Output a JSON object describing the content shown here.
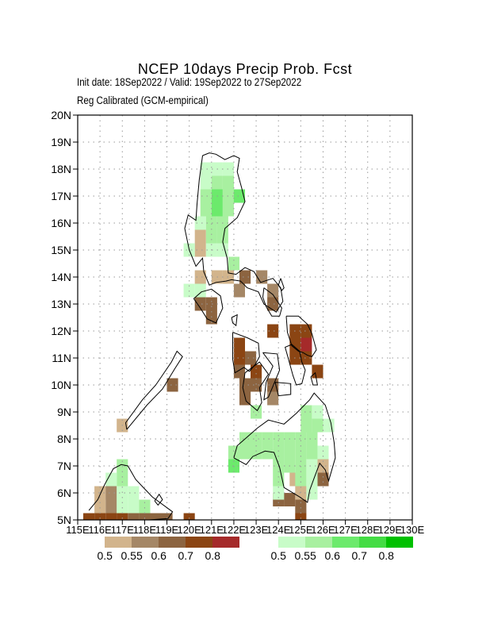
{
  "title": "NCEP 10days Precip Prob. Fcst",
  "subtitle_line1": "Init date: 18Sep2022 / Valid: 19Sep2022 to 27Sep2022",
  "subtitle_line2": "Reg Calibrated (GCM-empirical)",
  "map": {
    "lon_range": [
      115,
      130
    ],
    "lat_range": [
      5,
      20
    ],
    "grid_step_deg": 1,
    "cell_deg": 0.5,
    "grid_style": "dotted",
    "x_tick_labels": [
      "115E",
      "116E",
      "117E",
      "118E",
      "119E",
      "120E",
      "121E",
      "122E",
      "123E",
      "124E",
      "125E",
      "126E",
      "127E",
      "128E",
      "129E",
      "130E"
    ],
    "y_tick_labels": [
      "5N",
      "6N",
      "7N",
      "8N",
      "9N",
      "10N",
      "11N",
      "12N",
      "13N",
      "14N",
      "15N",
      "16N",
      "17N",
      "18N",
      "19N",
      "20N"
    ],
    "coastline_color": "#000000"
  },
  "legend": {
    "dry": {
      "colors": [
        "#d2b48c",
        "#a58766",
        "#8c6440",
        "#8b4513",
        "#a52a2a"
      ],
      "labels": [
        "0.5",
        "0.55",
        "0.6",
        "0.7",
        "0.8"
      ]
    },
    "wet": {
      "colors": [
        "#c8fcc8",
        "#a8f0a0",
        "#6cea6c",
        "#44dc44",
        "#00c000"
      ],
      "labels": [
        "0.5",
        "0.55",
        "0.6",
        "0.7",
        "0.8"
      ]
    }
  },
  "dry_cells": [
    [
      120.5,
      15.5,
      1
    ],
    [
      120.5,
      15.0,
      1
    ],
    [
      121.25,
      14.0,
      1
    ],
    [
      121.75,
      14.0,
      1
    ],
    [
      120.5,
      14.0,
      1
    ],
    [
      120.5,
      13.0,
      3
    ],
    [
      121.0,
      13.0,
      3
    ],
    [
      121.0,
      12.5,
      3
    ],
    [
      122.25,
      13.5,
      2
    ],
    [
      122.5,
      14.0,
      3
    ],
    [
      123.25,
      14.0,
      2
    ],
    [
      123.75,
      13.5,
      2
    ],
    [
      123.75,
      13.0,
      3
    ],
    [
      123.75,
      12.0,
      4
    ],
    [
      124.75,
      12.0,
      4
    ],
    [
      125.25,
      12.0,
      4
    ],
    [
      124.75,
      11.5,
      4
    ],
    [
      125.25,
      11.5,
      5
    ],
    [
      124.75,
      11.0,
      4
    ],
    [
      125.25,
      11.0,
      4
    ],
    [
      125.75,
      10.5,
      4
    ],
    [
      122.25,
      11.5,
      4
    ],
    [
      122.25,
      11.0,
      4
    ],
    [
      122.75,
      11.0,
      3
    ],
    [
      122.25,
      10.5,
      3
    ],
    [
      123.0,
      10.5,
      4
    ],
    [
      122.5,
      10.0,
      3
    ],
    [
      123.0,
      10.0,
      3
    ],
    [
      122.5,
      9.5,
      3
    ],
    [
      123.75,
      10.0,
      3
    ],
    [
      123.75,
      9.5,
      2
    ],
    [
      124.75,
      6.5,
      1
    ],
    [
      125.0,
      6.0,
      1
    ],
    [
      126.0,
      6.5,
      3
    ],
    [
      126.0,
      7.0,
      1
    ],
    [
      124.0,
      5.75,
      3
    ],
    [
      124.5,
      5.75,
      3
    ],
    [
      125.0,
      5.5,
      3
    ],
    [
      125.0,
      5.0,
      4
    ],
    [
      119.25,
      10.0,
      3
    ],
    [
      117.0,
      8.5,
      1
    ],
    [
      116.0,
      6.0,
      1
    ],
    [
      116.5,
      6.0,
      2
    ],
    [
      116.5,
      5.5,
      2
    ],
    [
      116.0,
      5.5,
      1
    ],
    [
      115.5,
      5.0,
      4
    ],
    [
      116.0,
      5.0,
      4
    ],
    [
      116.5,
      5.0,
      4
    ],
    [
      117.0,
      5.0,
      4
    ],
    [
      117.5,
      5.0,
      3
    ],
    [
      118.0,
      5.0,
      3
    ],
    [
      118.5,
      5.0,
      3
    ],
    [
      119.0,
      5.0,
      3
    ],
    [
      120.0,
      5.0,
      4
    ]
  ],
  "wet_cells": [
    [
      120.75,
      18.0,
      1
    ],
    [
      121.25,
      18.0,
      1
    ],
    [
      121.75,
      18.0,
      1
    ],
    [
      120.75,
      17.5,
      1
    ],
    [
      121.25,
      17.5,
      2
    ],
    [
      121.75,
      17.5,
      2
    ],
    [
      120.75,
      17.0,
      2
    ],
    [
      121.25,
      17.0,
      3
    ],
    [
      121.75,
      17.0,
      2
    ],
    [
      122.25,
      17.0,
      3
    ],
    [
      120.75,
      16.5,
      2
    ],
    [
      121.25,
      16.5,
      3
    ],
    [
      121.75,
      16.5,
      2
    ],
    [
      120.5,
      16.0,
      1
    ],
    [
      121.0,
      16.0,
      2
    ],
    [
      121.5,
      16.0,
      2
    ],
    [
      121.0,
      15.5,
      2
    ],
    [
      121.5,
      15.5,
      2
    ],
    [
      120.0,
      15.0,
      1
    ],
    [
      121.0,
      15.0,
      1
    ],
    [
      121.5,
      15.0,
      1
    ],
    [
      122.0,
      14.5,
      2
    ],
    [
      120.0,
      13.5,
      1
    ],
    [
      120.5,
      13.5,
      1
    ],
    [
      123.0,
      9.0,
      2
    ],
    [
      122.5,
      8.0,
      2
    ],
    [
      123.0,
      8.0,
      2
    ],
    [
      123.5,
      8.0,
      2
    ],
    [
      124.0,
      8.0,
      2
    ],
    [
      124.5,
      8.0,
      2
    ],
    [
      125.0,
      8.0,
      2
    ],
    [
      125.5,
      8.0,
      2
    ],
    [
      122.0,
      7.5,
      2
    ],
    [
      122.5,
      7.5,
      2
    ],
    [
      123.0,
      7.5,
      2
    ],
    [
      123.5,
      7.5,
      2
    ],
    [
      124.0,
      7.5,
      2
    ],
    [
      124.5,
      7.5,
      2
    ],
    [
      125.0,
      7.5,
      2
    ],
    [
      125.5,
      7.5,
      2
    ],
    [
      126.0,
      7.5,
      1
    ],
    [
      122.0,
      7.0,
      3
    ],
    [
      124.0,
      7.0,
      2
    ],
    [
      124.5,
      7.0,
      2
    ],
    [
      125.0,
      7.0,
      2
    ],
    [
      125.5,
      7.0,
      1
    ],
    [
      124.0,
      6.5,
      2
    ],
    [
      125.0,
      6.5,
      2
    ],
    [
      125.5,
      6.5,
      1
    ],
    [
      124.0,
      6.0,
      1
    ],
    [
      125.5,
      6.0,
      1
    ],
    [
      125.25,
      9.0,
      2
    ],
    [
      125.75,
      9.0,
      1
    ],
    [
      125.25,
      8.5,
      2
    ],
    [
      126.25,
      8.5,
      1
    ],
    [
      125.75,
      8.5,
      2
    ],
    [
      117.0,
      7.0,
      2
    ],
    [
      117.0,
      6.5,
      2
    ],
    [
      116.5,
      6.5,
      1
    ],
    [
      117.5,
      6.0,
      1
    ],
    [
      117.0,
      6.0,
      1
    ],
    [
      117.5,
      5.5,
      1
    ],
    [
      118.0,
      5.5,
      2
    ],
    [
      117.0,
      5.5,
      1
    ]
  ],
  "coastlines": [
    [
      [
        120.6,
        18.5
      ],
      [
        120.9,
        18.6
      ],
      [
        121.2,
        18.55
      ],
      [
        121.6,
        18.35
      ],
      [
        122.0,
        18.5
      ],
      [
        122.25,
        18.4
      ],
      [
        122.15,
        17.9
      ],
      [
        122.35,
        17.3
      ],
      [
        122.5,
        16.8
      ],
      [
        122.15,
        16.2
      ],
      [
        121.6,
        15.8
      ],
      [
        121.5,
        15.3
      ],
      [
        121.7,
        14.7
      ],
      [
        121.75,
        14.15
      ],
      [
        122.1,
        14.1
      ],
      [
        122.5,
        14.35
      ],
      [
        122.9,
        14.2
      ],
      [
        123.2,
        13.8
      ],
      [
        123.75,
        13.95
      ],
      [
        124.1,
        13.6
      ],
      [
        124.2,
        13.1
      ],
      [
        123.9,
        12.7
      ],
      [
        123.35,
        13.0
      ],
      [
        123.1,
        13.45
      ],
      [
        122.6,
        13.6
      ],
      [
        122.3,
        13.85
      ],
      [
        121.9,
        13.9
      ],
      [
        121.65,
        13.85
      ],
      [
        121.2,
        13.8
      ],
      [
        120.9,
        13.7
      ],
      [
        120.65,
        14.2
      ],
      [
        120.6,
        14.7
      ],
      [
        120.5,
        14.6
      ],
      [
        120.3,
        14.4
      ],
      [
        120.0,
        15.0
      ],
      [
        119.8,
        15.8
      ],
      [
        119.95,
        16.3
      ],
      [
        120.3,
        16.1
      ],
      [
        120.35,
        16.7
      ],
      [
        120.45,
        17.6
      ],
      [
        120.6,
        18.5
      ]
    ],
    [
      [
        124.35,
        12.55
      ],
      [
        124.9,
        12.55
      ],
      [
        125.3,
        12.25
      ],
      [
        125.5,
        11.9
      ],
      [
        125.7,
        11.3
      ],
      [
        125.5,
        11.05
      ],
      [
        125.3,
        11.1
      ],
      [
        125.1,
        11.2
      ],
      [
        124.9,
        11.25
      ],
      [
        124.6,
        11.45
      ],
      [
        124.4,
        11.95
      ],
      [
        124.35,
        12.55
      ]
    ],
    [
      [
        124.95,
        11.25
      ],
      [
        125.05,
        10.85
      ],
      [
        125.2,
        10.55
      ],
      [
        125.05,
        10.05
      ],
      [
        124.8,
        10.0
      ],
      [
        124.65,
        10.35
      ],
      [
        124.45,
        10.95
      ],
      [
        124.3,
        11.4
      ],
      [
        124.6,
        11.5
      ],
      [
        124.95,
        11.25
      ]
    ],
    [
      [
        121.95,
        11.95
      ],
      [
        122.6,
        11.75
      ],
      [
        123.1,
        11.55
      ],
      [
        123.15,
        11.05
      ],
      [
        122.95,
        10.75
      ],
      [
        122.7,
        10.5
      ],
      [
        122.45,
        10.65
      ],
      [
        122.05,
        10.45
      ],
      [
        121.95,
        10.95
      ],
      [
        121.95,
        11.95
      ]
    ],
    [
      [
        122.5,
        10.45
      ],
      [
        123.15,
        10.85
      ],
      [
        123.55,
        10.4
      ],
      [
        123.15,
        9.9
      ],
      [
        123.25,
        9.35
      ],
      [
        123.05,
        9.05
      ],
      [
        122.55,
        9.4
      ],
      [
        122.4,
        9.9
      ],
      [
        122.5,
        10.45
      ]
    ],
    [
      [
        123.3,
        11.2
      ],
      [
        123.95,
        11.15
      ],
      [
        124.05,
        10.55
      ],
      [
        123.75,
        9.95
      ],
      [
        123.55,
        9.55
      ],
      [
        123.35,
        9.45
      ],
      [
        123.45,
        10.1
      ],
      [
        123.75,
        10.7
      ],
      [
        123.3,
        11.2
      ]
    ],
    [
      [
        123.85,
        10.1
      ],
      [
        124.55,
        10.05
      ],
      [
        124.55,
        9.65
      ],
      [
        124.0,
        9.6
      ],
      [
        123.85,
        10.1
      ]
    ],
    [
      [
        122.0,
        7.3
      ],
      [
        122.15,
        7.75
      ],
      [
        122.5,
        8.0
      ],
      [
        123.05,
        8.4
      ],
      [
        123.55,
        8.7
      ],
      [
        124.25,
        8.55
      ],
      [
        124.8,
        8.95
      ],
      [
        125.4,
        9.45
      ],
      [
        125.6,
        9.7
      ],
      [
        126.1,
        9.25
      ],
      [
        126.35,
        8.6
      ],
      [
        126.5,
        7.85
      ],
      [
        126.55,
        7.3
      ],
      [
        126.25,
        6.45
      ],
      [
        126.1,
        6.85
      ],
      [
        125.85,
        7.1
      ],
      [
        125.6,
        6.55
      ],
      [
        125.4,
        6.1
      ],
      [
        125.3,
        5.65
      ],
      [
        124.95,
        5.85
      ],
      [
        124.25,
        6.2
      ],
      [
        124.05,
        6.95
      ],
      [
        123.8,
        7.5
      ],
      [
        123.4,
        7.55
      ],
      [
        122.85,
        7.35
      ],
      [
        122.55,
        7.05
      ],
      [
        122.0,
        7.3
      ]
    ],
    [
      [
        117.2,
        8.35
      ],
      [
        118.1,
        9.25
      ],
      [
        118.8,
        9.85
      ],
      [
        119.35,
        10.6
      ],
      [
        119.7,
        11.05
      ],
      [
        119.45,
        11.25
      ],
      [
        119.2,
        10.85
      ],
      [
        118.5,
        10.0
      ],
      [
        117.9,
        9.45
      ],
      [
        117.15,
        8.6
      ],
      [
        117.2,
        8.35
      ]
    ],
    [
      [
        120.2,
        13.2
      ],
      [
        120.55,
        13.45
      ],
      [
        121.0,
        13.55
      ],
      [
        121.4,
        13.3
      ],
      [
        121.5,
        12.85
      ],
      [
        121.2,
        12.3
      ],
      [
        120.8,
        12.45
      ],
      [
        120.5,
        12.85
      ],
      [
        120.2,
        13.2
      ]
    ],
    [
      [
        115.5,
        5.35
      ],
      [
        115.9,
        5.75
      ],
      [
        116.2,
        6.3
      ],
      [
        116.6,
        6.9
      ],
      [
        116.95,
        7.05
      ],
      [
        117.25,
        7.0
      ],
      [
        117.6,
        6.5
      ],
      [
        118.0,
        6.15
      ],
      [
        118.35,
        5.85
      ],
      [
        119.25,
        5.3
      ],
      [
        119.05,
        5.05
      ],
      [
        118.2,
        5.0
      ]
    ],
    [
      [
        123.35,
        13.6
      ],
      [
        123.75,
        13.35
      ],
      [
        123.95,
        13.1
      ],
      [
        124.15,
        12.85
      ],
      [
        124.05,
        12.55
      ],
      [
        123.7,
        12.55
      ],
      [
        123.45,
        12.9
      ],
      [
        123.3,
        13.25
      ],
      [
        123.35,
        13.6
      ]
    ],
    [
      [
        124.1,
        13.95
      ],
      [
        124.25,
        13.6
      ],
      [
        124.15,
        13.5
      ],
      [
        124.0,
        13.7
      ],
      [
        124.1,
        13.95
      ]
    ],
    [
      [
        121.9,
        12.5
      ],
      [
        122.15,
        12.6
      ],
      [
        122.1,
        12.2
      ],
      [
        121.95,
        12.3
      ],
      [
        121.9,
        12.5
      ]
    ],
    [
      [
        125.45,
        10.3
      ],
      [
        125.65,
        10.45
      ],
      [
        125.75,
        10.0
      ],
      [
        125.55,
        10.0
      ],
      [
        125.45,
        10.3
      ]
    ],
    [
      [
        118.45,
        5.7
      ],
      [
        118.65,
        5.95
      ],
      [
        118.8,
        5.75
      ],
      [
        118.6,
        5.55
      ],
      [
        118.45,
        5.7
      ]
    ],
    [
      [
        121.8,
        20.45
      ],
      [
        121.9,
        20.55
      ],
      [
        121.85,
        20.35
      ],
      [
        121.8,
        20.45
      ]
    ]
  ]
}
